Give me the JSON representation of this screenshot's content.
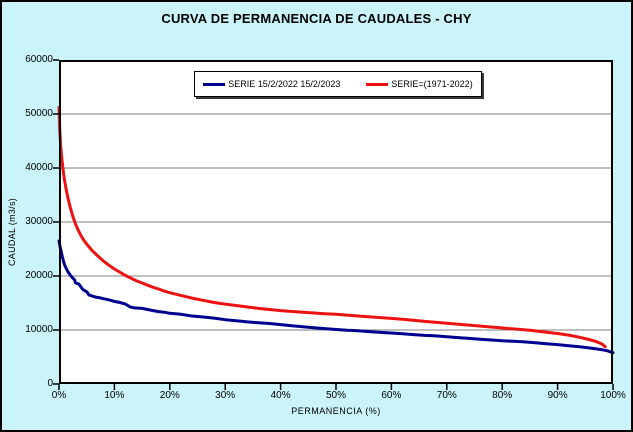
{
  "title": "CURVA DE PERMANENCIA DE CAUDALES - CHY",
  "colors": {
    "background": "#CAF4FA",
    "plot_bg": "#FFFFFF",
    "grid": "#808080",
    "border": "#000000",
    "series_blue": "#000090",
    "series_red": "#EE1111"
  },
  "x_axis": {
    "title": "PERMANENCIA (%)",
    "ticks": [
      {
        "label": "0%",
        "value": 0
      },
      {
        "label": "10%",
        "value": 10
      },
      {
        "label": "20%",
        "value": 20
      },
      {
        "label": "30%",
        "value": 30
      },
      {
        "label": "40%",
        "value": 40
      },
      {
        "label": "50%",
        "value": 50
      },
      {
        "label": "60%",
        "value": 60
      },
      {
        "label": "70%",
        "value": 70
      },
      {
        "label": "80%",
        "value": 80
      },
      {
        "label": "90%",
        "value": 90
      },
      {
        "label": "100%",
        "value": 100
      }
    ]
  },
  "y_axis": {
    "title": "CAUDAL (m3/s)",
    "ticks": [
      {
        "label": "0",
        "value": 0
      },
      {
        "label": "10000",
        "value": 10000
      },
      {
        "label": "20000",
        "value": 20000
      },
      {
        "label": "30000",
        "value": 30000
      },
      {
        "label": "40000",
        "value": 40000
      },
      {
        "label": "50000",
        "value": 50000
      },
      {
        "label": "60000",
        "value": 60000
      }
    ]
  },
  "legend": {
    "items": [
      {
        "label": "SERIE 15/2/2022 15/2/2023",
        "color": "#000090"
      },
      {
        "label": "SERIE=(1971-2022)",
        "color": "#EE1111"
      }
    ]
  },
  "chart_data": {
    "type": "line",
    "title": "CURVA DE PERMANENCIA DE CAUDALES - CHY",
    "xlabel": "PERMANENCIA (%)",
    "ylabel": "CAUDAL (m3/s)",
    "xlim": [
      0,
      100
    ],
    "ylim": [
      0,
      60000
    ],
    "grid": true,
    "legend_position": "top-center-inside",
    "series": [
      {
        "name": "SERIE 15/2/2022 15/2/2023",
        "color": "#000090",
        "points": [
          [
            0,
            26500
          ],
          [
            0.2,
            25400
          ],
          [
            0.4,
            24500
          ],
          [
            0.6,
            23600
          ],
          [
            0.8,
            22800
          ],
          [
            1,
            22100
          ],
          [
            1.3,
            21400
          ],
          [
            1.6,
            20800
          ],
          [
            2,
            20200
          ],
          [
            2.4,
            19700
          ],
          [
            2.8,
            19300
          ],
          [
            3,
            18700
          ],
          [
            3.6,
            18500
          ],
          [
            4,
            17900
          ],
          [
            4.4,
            17400
          ],
          [
            5,
            17100
          ],
          [
            5.4,
            16500
          ],
          [
            6,
            16300
          ],
          [
            6.6,
            16100
          ],
          [
            7.2,
            16000
          ],
          [
            8,
            15800
          ],
          [
            9,
            15600
          ],
          [
            10,
            15300
          ],
          [
            11,
            15100
          ],
          [
            12,
            14800
          ],
          [
            12.8,
            14300
          ],
          [
            13.6,
            14100
          ],
          [
            15,
            14000
          ],
          [
            16,
            13800
          ],
          [
            17,
            13600
          ],
          [
            18,
            13400
          ],
          [
            19,
            13300
          ],
          [
            20,
            13100
          ],
          [
            22,
            12900
          ],
          [
            24,
            12600
          ],
          [
            26,
            12400
          ],
          [
            28,
            12200
          ],
          [
            30,
            11900
          ],
          [
            32,
            11700
          ],
          [
            34,
            11500
          ],
          [
            36,
            11350
          ],
          [
            38,
            11200
          ],
          [
            40,
            11000
          ],
          [
            42,
            10800
          ],
          [
            44,
            10600
          ],
          [
            46,
            10400
          ],
          [
            48,
            10250
          ],
          [
            50,
            10100
          ],
          [
            52,
            9950
          ],
          [
            54,
            9850
          ],
          [
            56,
            9700
          ],
          [
            58,
            9550
          ],
          [
            60,
            9450
          ],
          [
            62,
            9300
          ],
          [
            64,
            9150
          ],
          [
            66,
            9000
          ],
          [
            68,
            8900
          ],
          [
            70,
            8750
          ],
          [
            72,
            8600
          ],
          [
            74,
            8450
          ],
          [
            76,
            8300
          ],
          [
            78,
            8150
          ],
          [
            80,
            8000
          ],
          [
            82,
            7900
          ],
          [
            84,
            7800
          ],
          [
            86,
            7650
          ],
          [
            88,
            7450
          ],
          [
            90,
            7300
          ],
          [
            92,
            7100
          ],
          [
            94,
            6900
          ],
          [
            96,
            6650
          ],
          [
            98,
            6350
          ],
          [
            99,
            6150
          ],
          [
            100,
            5800
          ]
        ]
      },
      {
        "name": "SERIE=(1971-2022)",
        "color": "#EE1111",
        "points": [
          [
            0,
            51200
          ],
          [
            0.15,
            47000
          ],
          [
            0.3,
            44000
          ],
          [
            0.5,
            41800
          ],
          [
            0.8,
            39200
          ],
          [
            1,
            37800
          ],
          [
            1.3,
            36000
          ],
          [
            1.6,
            34500
          ],
          [
            2,
            32800
          ],
          [
            2.5,
            31000
          ],
          [
            3,
            29600
          ],
          [
            3.5,
            28400
          ],
          [
            4,
            27400
          ],
          [
            4.5,
            26600
          ],
          [
            5,
            25900
          ],
          [
            6,
            24700
          ],
          [
            7,
            23700
          ],
          [
            8,
            22800
          ],
          [
            9,
            22000
          ],
          [
            10,
            21300
          ],
          [
            11,
            20700
          ],
          [
            12,
            20100
          ],
          [
            13,
            19600
          ],
          [
            14,
            19100
          ],
          [
            15,
            18700
          ],
          [
            16,
            18300
          ],
          [
            17,
            17900
          ],
          [
            18,
            17600
          ],
          [
            19,
            17200
          ],
          [
            20,
            16900
          ],
          [
            22,
            16400
          ],
          [
            24,
            15900
          ],
          [
            26,
            15500
          ],
          [
            28,
            15100
          ],
          [
            30,
            14800
          ],
          [
            33,
            14400
          ],
          [
            36,
            14000
          ],
          [
            40,
            13600
          ],
          [
            44,
            13300
          ],
          [
            48,
            13000
          ],
          [
            50,
            12900
          ],
          [
            54,
            12600
          ],
          [
            58,
            12300
          ],
          [
            62,
            12000
          ],
          [
            66,
            11600
          ],
          [
            70,
            11250
          ],
          [
            74,
            10900
          ],
          [
            78,
            10550
          ],
          [
            82,
            10200
          ],
          [
            85,
            9950
          ],
          [
            88,
            9600
          ],
          [
            90,
            9350
          ],
          [
            92,
            9050
          ],
          [
            94,
            8650
          ],
          [
            96,
            8150
          ],
          [
            97,
            7850
          ],
          [
            98,
            7400
          ],
          [
            98.6,
            6900
          ]
        ]
      }
    ]
  }
}
